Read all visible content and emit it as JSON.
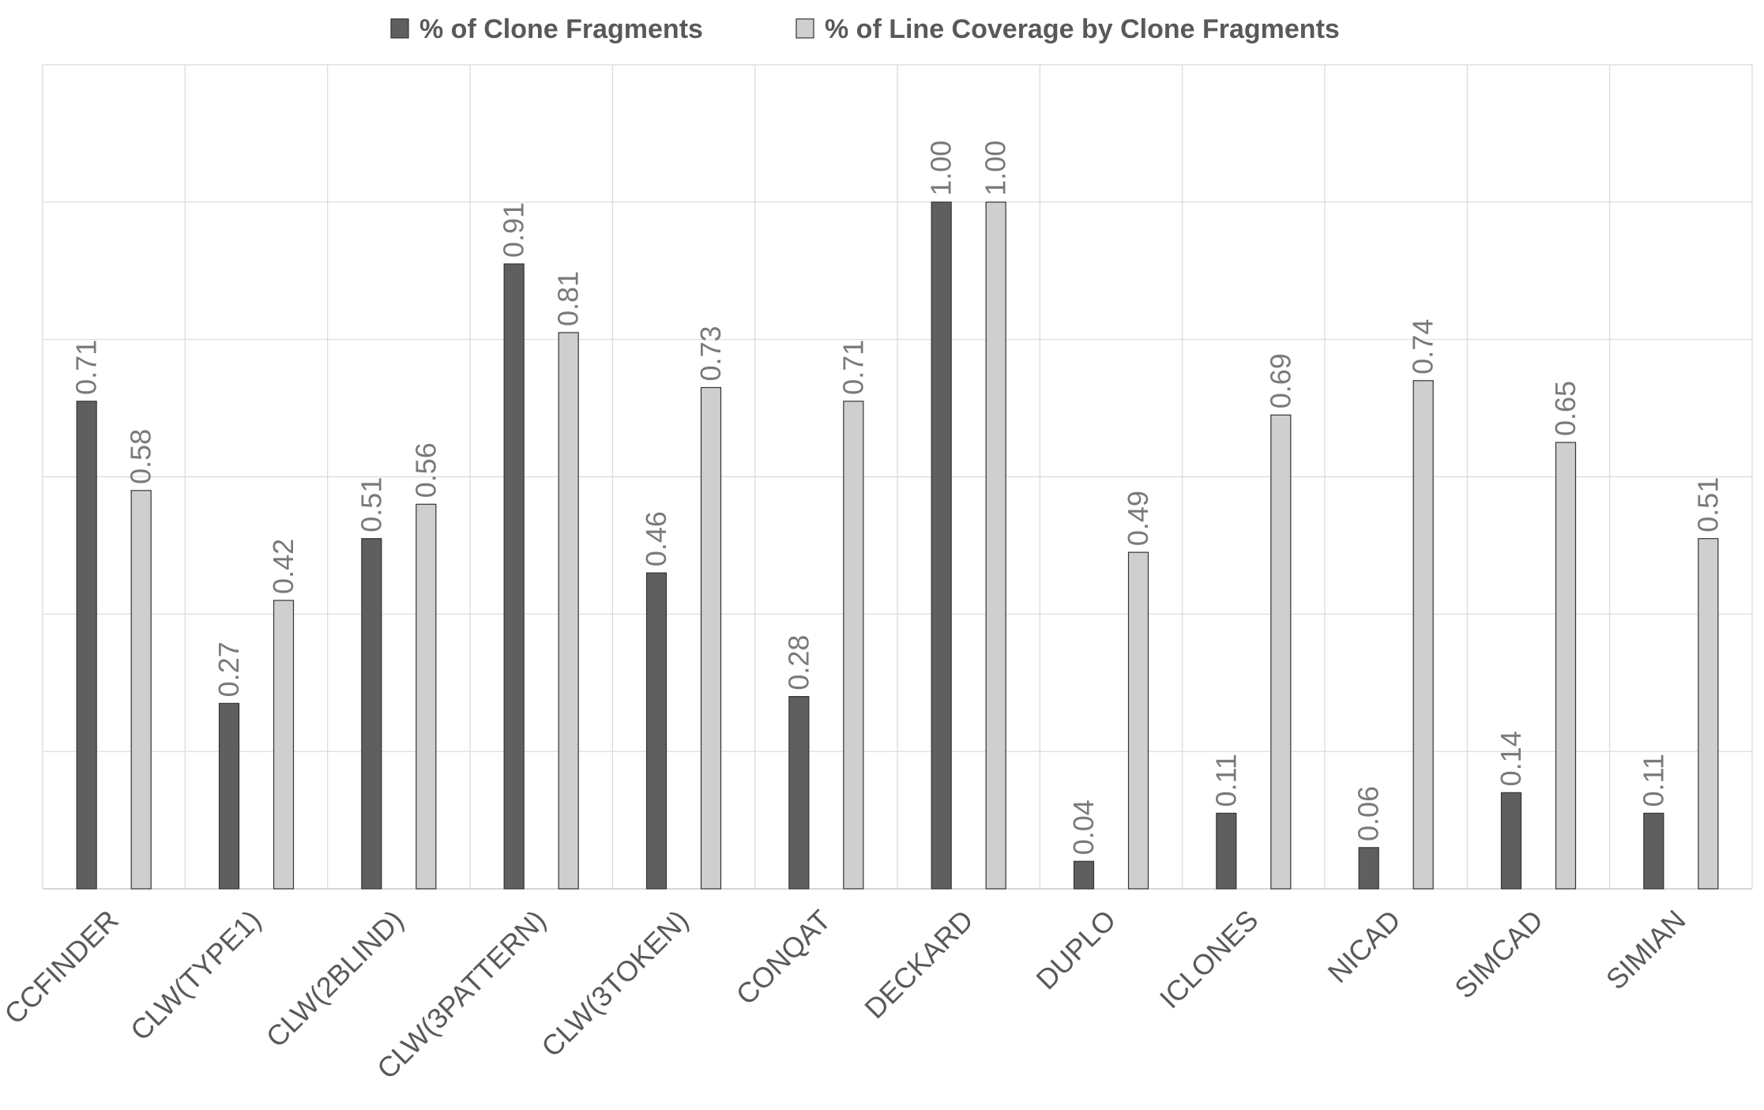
{
  "chart_data": {
    "type": "bar",
    "title": "",
    "xlabel": "",
    "ylabel": "",
    "ylim": [
      0,
      1.2
    ],
    "grid": true,
    "legend_position": "top",
    "categories": [
      "CCFINDER",
      "CLW(TYPE1)",
      "CLW(2BLIND)",
      "CLW(3PATTERN)",
      "CLW(3TOKEN)",
      "CONQAT",
      "DECKARD",
      "DUPLO",
      "ICLONES",
      "NICAD",
      "SIMCAD",
      "SIMIAN"
    ],
    "series": [
      {
        "name": "% of Clone Fragments",
        "color": "#5f5f5f",
        "values": [
          0.71,
          0.27,
          0.51,
          0.91,
          0.46,
          0.28,
          1.0,
          0.04,
          0.11,
          0.06,
          0.14,
          0.11
        ],
        "labels": [
          "0.71",
          "0.27",
          "0.51",
          "0.91",
          "0.46",
          "0.28",
          "1.00",
          "0.04",
          "0.11",
          "0.06",
          "0.14",
          "0.11"
        ]
      },
      {
        "name": "% of Line Coverage by Clone Fragments",
        "color": "#cfcfcf",
        "values": [
          0.58,
          0.42,
          0.56,
          0.81,
          0.73,
          0.71,
          1.0,
          0.49,
          0.69,
          0.74,
          0.65,
          0.51
        ],
        "labels": [
          "0.58",
          "0.42",
          "0.56",
          "0.81",
          "0.73",
          "0.71",
          "1.00",
          "0.49",
          "0.69",
          "0.74",
          "0.65",
          "0.51"
        ]
      }
    ]
  }
}
